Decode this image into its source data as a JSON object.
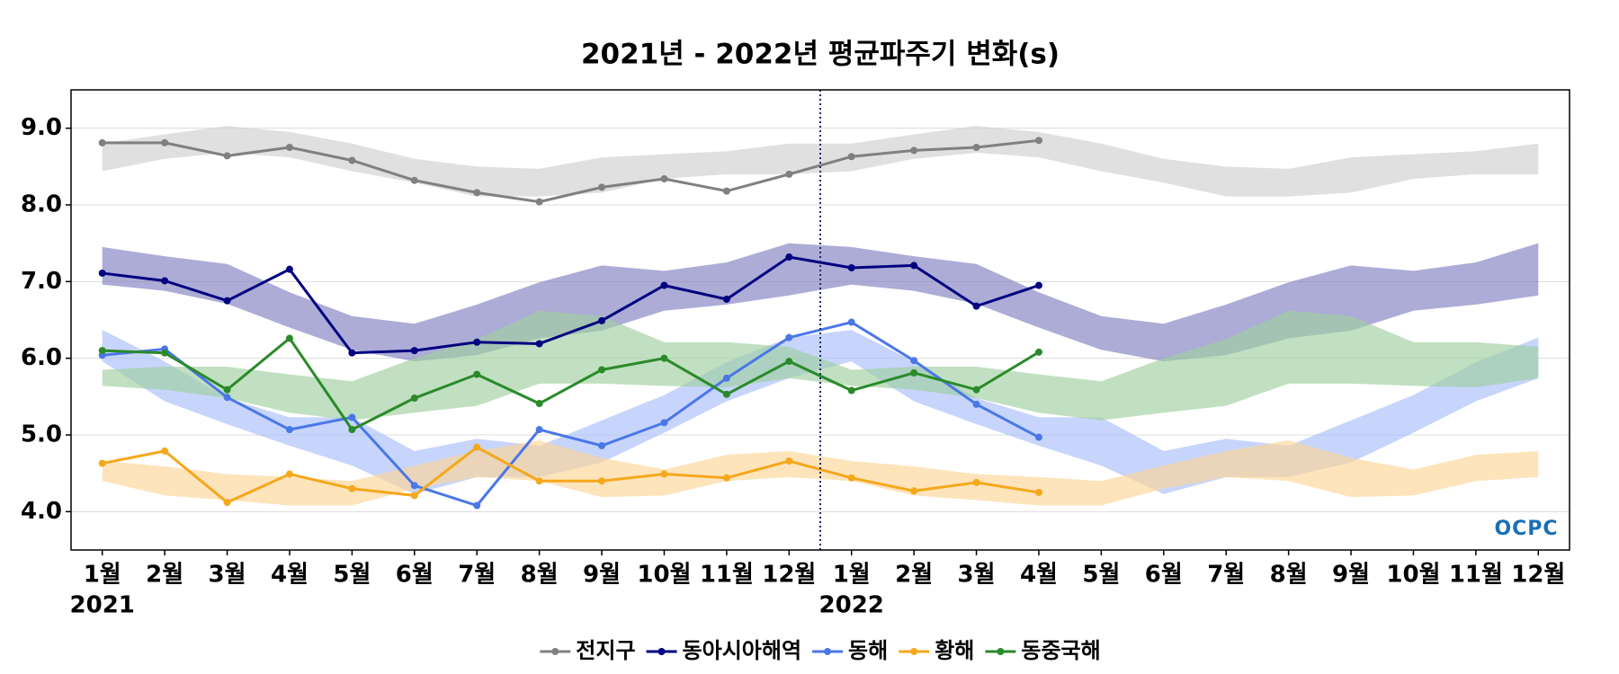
{
  "chart_data": {
    "type": "line",
    "title": "2021년 - 2022년 평균파주기 변화(s)",
    "logo": "OCPC",
    "categories": [
      "1월",
      "2월",
      "3월",
      "4월",
      "5월",
      "6월",
      "7월",
      "8월",
      "9월",
      "10월",
      "11월",
      "12월",
      "1월",
      "2월",
      "3월",
      "4월",
      "5월",
      "6월",
      "7월",
      "8월",
      "9월",
      "10월",
      "11월",
      "12월"
    ],
    "years": [
      "2021",
      null,
      null,
      null,
      null,
      null,
      null,
      null,
      null,
      null,
      null,
      null,
      "2022",
      null,
      null,
      null,
      null,
      null,
      null,
      null,
      null,
      null,
      null,
      null
    ],
    "ylim": [
      3.5,
      9.5
    ],
    "yticks": [
      {
        "value": 4,
        "label": "4.0"
      },
      {
        "value": 5,
        "label": "5.0"
      },
      {
        "value": 6,
        "label": "6.0"
      },
      {
        "value": 7,
        "label": "7.0"
      },
      {
        "value": 8,
        "label": "8.0"
      },
      {
        "value": 9,
        "label": "9.0"
      }
    ],
    "grid": true,
    "legend": "bottom",
    "series": [
      {
        "name": "전지구",
        "color": "#808080",
        "band_color": "#d0d0d0",
        "values": [
          8.81,
          8.81,
          8.64,
          8.75,
          8.58,
          8.32,
          8.16,
          8.04,
          8.23,
          8.34,
          8.18,
          8.4,
          8.63,
          8.71,
          8.75,
          8.84,
          null,
          null,
          null,
          null,
          null,
          null,
          null,
          null
        ],
        "band_high": [
          8.8,
          8.92,
          9.03,
          8.95,
          8.8,
          8.6,
          8.5,
          8.47,
          8.62,
          8.66,
          8.7,
          8.8,
          8.8,
          8.92,
          9.03,
          8.95,
          8.8,
          8.6,
          8.5,
          8.47,
          8.62,
          8.66,
          8.7,
          8.8
        ],
        "band_low": [
          8.44,
          8.6,
          8.68,
          8.62,
          8.44,
          8.29,
          8.11,
          8.11,
          8.16,
          8.34,
          8.4,
          8.4,
          8.44,
          8.6,
          8.68,
          8.62,
          8.44,
          8.29,
          8.11,
          8.11,
          8.16,
          8.34,
          8.4,
          8.4
        ]
      },
      {
        "name": "동아시아해역",
        "color": "#000080",
        "band_color": "#7f7fc0",
        "values": [
          7.11,
          7.01,
          6.75,
          7.16,
          6.07,
          6.1,
          6.21,
          6.19,
          6.49,
          6.95,
          6.77,
          7.32,
          7.18,
          7.21,
          6.68,
          6.95,
          null,
          null,
          null,
          null,
          null,
          null,
          null,
          null
        ],
        "band_high": [
          7.45,
          7.33,
          7.23,
          6.86,
          6.55,
          6.45,
          6.7,
          6.99,
          7.21,
          7.14,
          7.25,
          7.5,
          7.45,
          7.33,
          7.23,
          6.86,
          6.55,
          6.45,
          6.7,
          6.99,
          7.21,
          7.14,
          7.25,
          7.5
        ],
        "band_low": [
          6.96,
          6.88,
          6.71,
          6.4,
          6.11,
          5.96,
          6.04,
          6.26,
          6.36,
          6.62,
          6.7,
          6.82,
          6.96,
          6.88,
          6.71,
          6.4,
          6.11,
          5.96,
          6.04,
          6.26,
          6.36,
          6.62,
          6.7,
          6.82
        ]
      },
      {
        "name": "동해",
        "color": "#4a77e8",
        "band_color": "#a9bffa",
        "values": [
          6.04,
          6.12,
          5.49,
          5.07,
          5.23,
          4.34,
          4.08,
          5.07,
          4.86,
          5.16,
          5.74,
          6.27,
          6.47,
          5.97,
          5.4,
          4.97,
          null,
          null,
          null,
          null,
          null,
          null,
          null,
          null
        ],
        "band_high": [
          6.37,
          5.96,
          5.48,
          5.23,
          5.23,
          4.79,
          4.95,
          4.86,
          5.19,
          5.52,
          5.95,
          6.27,
          6.37,
          5.96,
          5.48,
          5.23,
          5.23,
          4.79,
          4.95,
          4.86,
          5.19,
          5.52,
          5.95,
          6.27
        ],
        "band_low": [
          5.96,
          5.44,
          5.14,
          4.86,
          4.6,
          4.23,
          4.45,
          4.45,
          4.64,
          5.03,
          5.44,
          5.74,
          5.96,
          5.44,
          5.14,
          4.86,
          4.6,
          4.23,
          4.45,
          4.45,
          4.64,
          5.03,
          5.44,
          5.74
        ]
      },
      {
        "name": "황해",
        "color": "#f5a81c",
        "band_color": "#fdd596",
        "values": [
          4.63,
          4.79,
          4.12,
          4.49,
          4.3,
          4.21,
          4.84,
          4.4,
          4.4,
          4.49,
          4.44,
          4.66,
          4.44,
          4.27,
          4.38,
          4.25,
          null,
          null,
          null,
          null,
          null,
          null,
          null,
          null
        ],
        "band_high": [
          4.66,
          4.59,
          4.49,
          4.45,
          4.4,
          4.6,
          4.79,
          4.93,
          4.7,
          4.55,
          4.74,
          4.79,
          4.66,
          4.59,
          4.49,
          4.45,
          4.4,
          4.6,
          4.79,
          4.93,
          4.7,
          4.55,
          4.74,
          4.79
        ],
        "band_low": [
          4.4,
          4.21,
          4.15,
          4.08,
          4.08,
          4.3,
          4.45,
          4.4,
          4.19,
          4.21,
          4.4,
          4.45,
          4.4,
          4.21,
          4.15,
          4.08,
          4.08,
          4.3,
          4.45,
          4.4,
          4.19,
          4.21,
          4.4,
          4.45
        ]
      },
      {
        "name": "동중국해",
        "color": "#2a8a2a",
        "band_color": "#9fd09f",
        "values": [
          6.1,
          6.07,
          5.59,
          6.26,
          5.07,
          5.48,
          5.79,
          5.41,
          5.85,
          6.0,
          5.53,
          5.96,
          5.58,
          5.81,
          5.59,
          6.08,
          null,
          null,
          null,
          null,
          null,
          null,
          null,
          null
        ],
        "band_high": [
          5.85,
          5.89,
          5.89,
          5.79,
          5.7,
          6.0,
          6.25,
          6.62,
          6.55,
          6.21,
          6.21,
          6.15,
          5.85,
          5.89,
          5.89,
          5.79,
          5.7,
          6.0,
          6.25,
          6.62,
          6.55,
          6.21,
          6.21,
          6.15
        ],
        "band_low": [
          5.64,
          5.59,
          5.48,
          5.29,
          5.19,
          5.29,
          5.38,
          5.67,
          5.67,
          5.64,
          5.62,
          5.74,
          5.64,
          5.59,
          5.48,
          5.29,
          5.19,
          5.29,
          5.38,
          5.67,
          5.67,
          5.64,
          5.62,
          5.74
        ]
      }
    ]
  }
}
